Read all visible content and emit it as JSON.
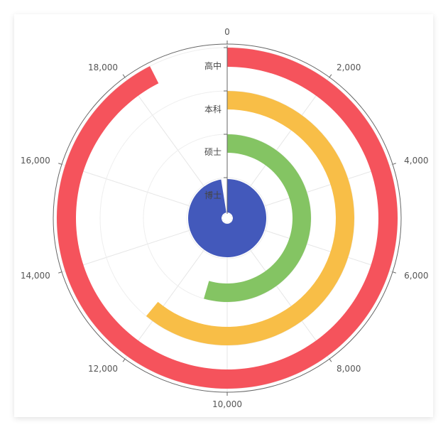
{
  "header": {
    "corner_mark": ""
  },
  "chart_data": {
    "type": "polar-bar",
    "categories": [
      "高中",
      "本科",
      "硕士",
      "博士"
    ],
    "values": [
      18500,
      12200,
      10900,
      19500
    ],
    "colors": [
      "#f5535c",
      "#f8be47",
      "#84c463",
      "#4359bb"
    ],
    "angle_axis": {
      "min": 0,
      "max": 20000,
      "start": "top",
      "direction": "clockwise",
      "tick_labels": [
        "0",
        "2,000",
        "4,000",
        "6,000",
        "8,000",
        "10,000",
        "12,000",
        "14,000",
        "16,000",
        "18,000"
      ]
    },
    "radius_axis": {
      "labels": [
        "高中",
        "本科",
        "硕士",
        "博士"
      ]
    },
    "grid": true
  }
}
